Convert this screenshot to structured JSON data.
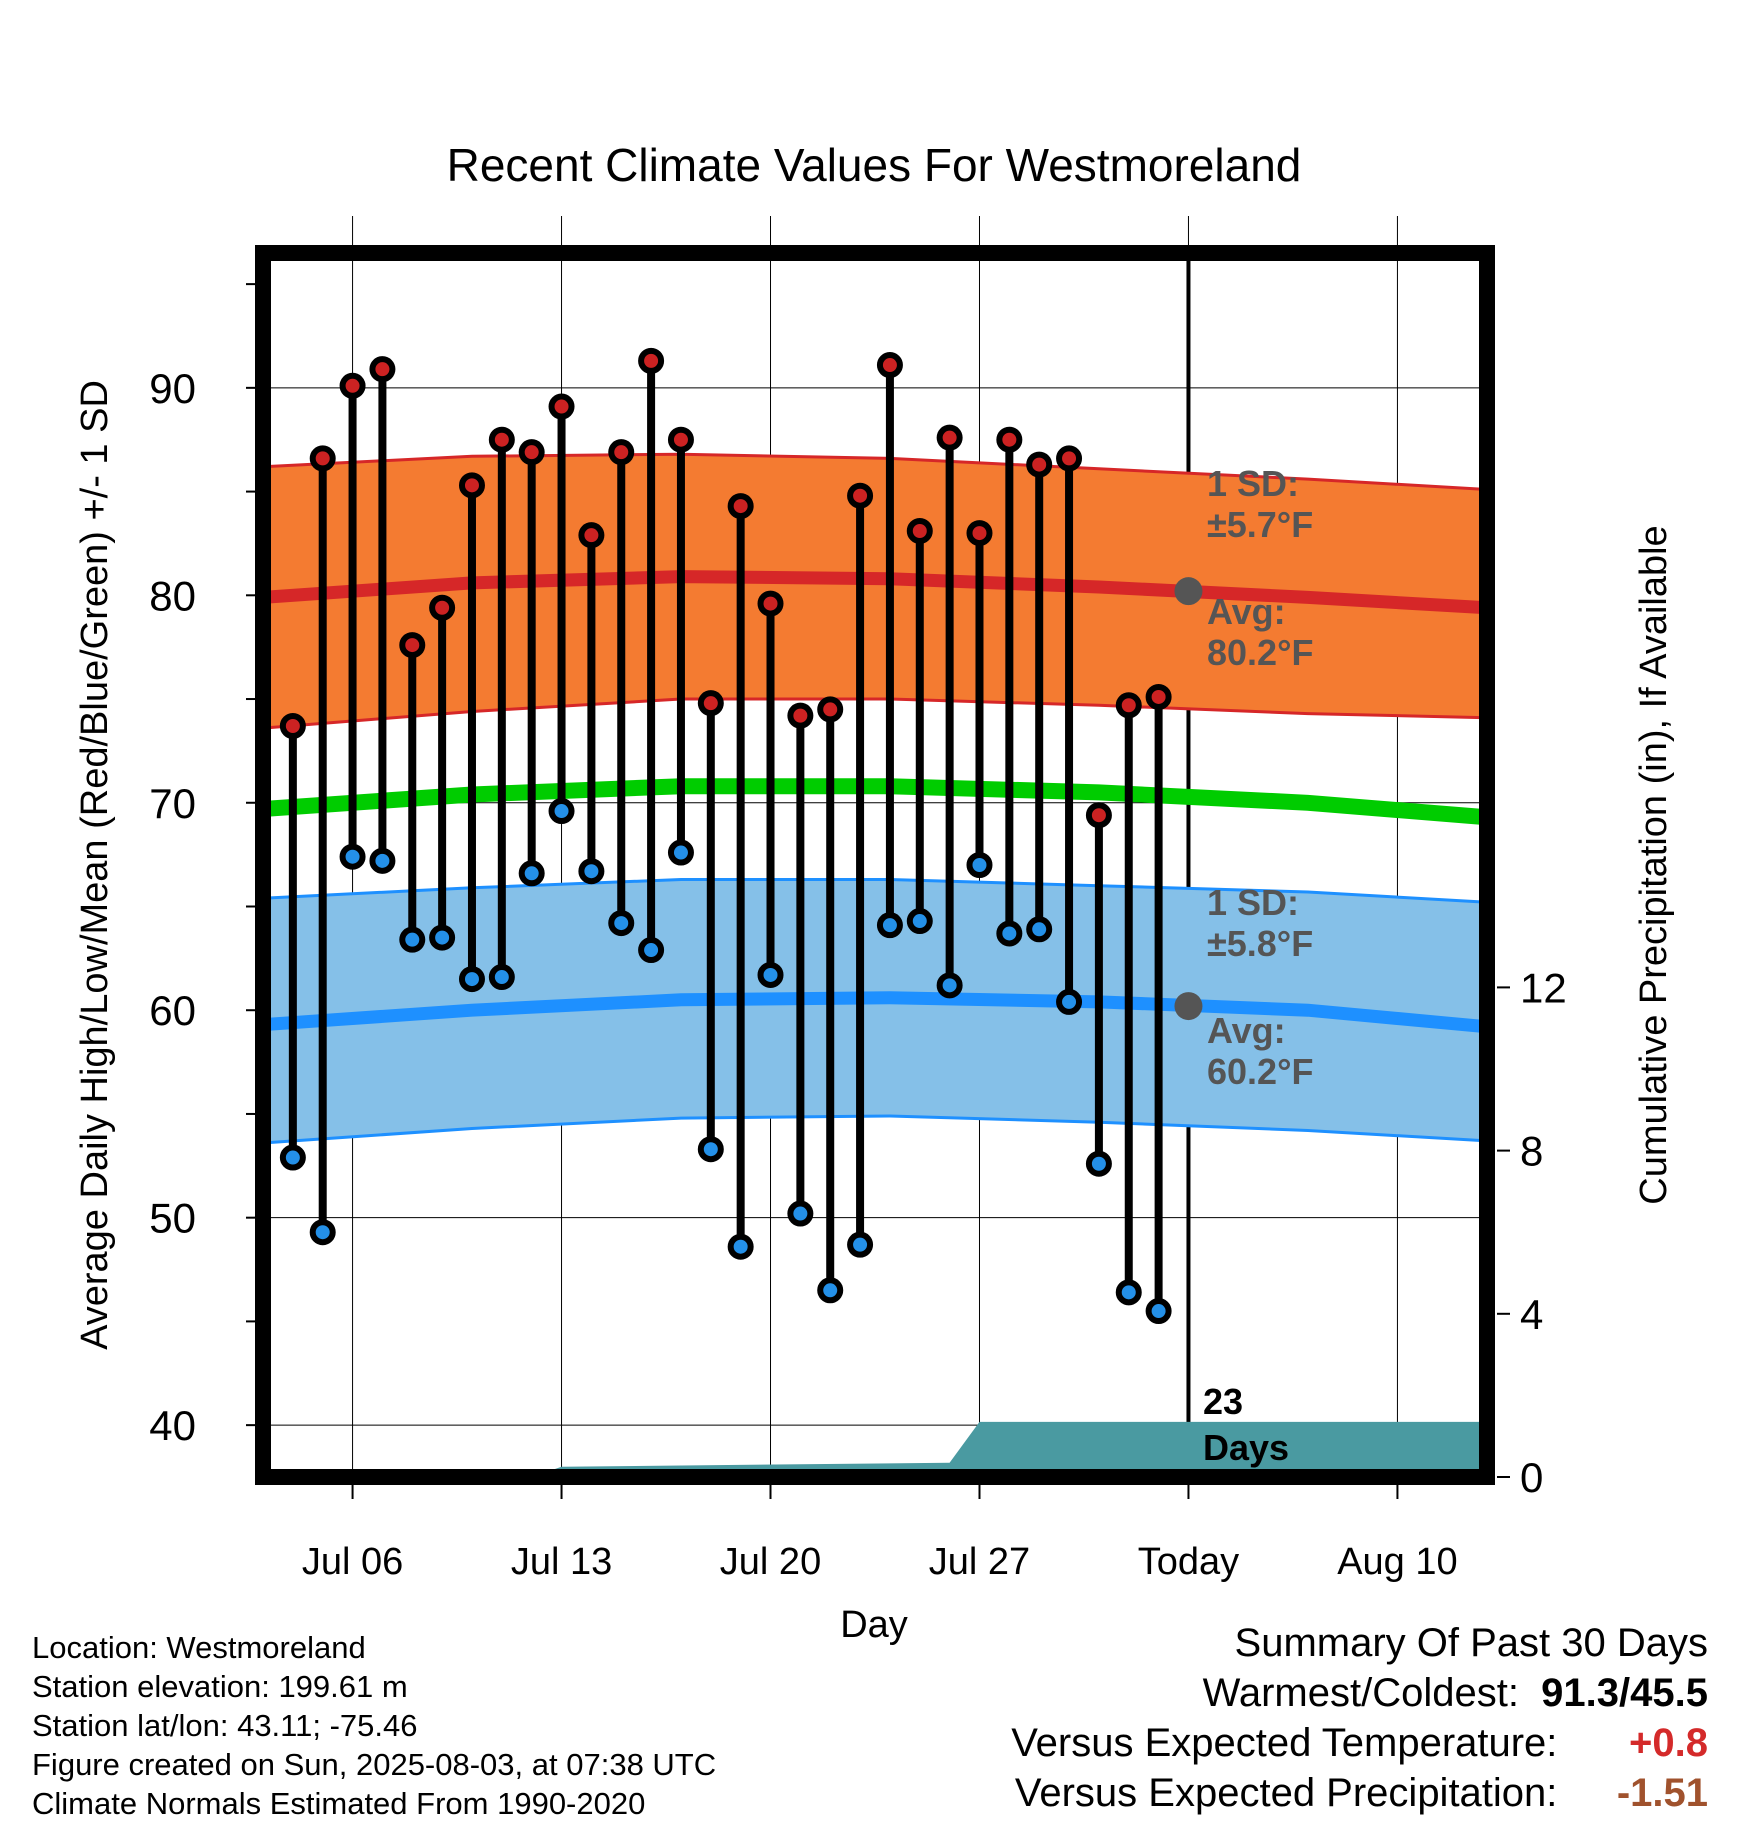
{
  "chart_data": {
    "type": "line",
    "title": "Recent Climate Values For Westmoreland",
    "xlabel": "Day",
    "ylabel": "Average Daily High/Low/Mean (Red/Blue/Green) +/- 1 SD",
    "y2label": "Cumulative Precipitation (in), If Available",
    "ylim": [
      37.5,
      96.5
    ],
    "y2lim": [
      0,
      30
    ],
    "y_ticks": [
      40,
      50,
      60,
      70,
      80,
      90
    ],
    "y2_ticks": [
      0,
      4,
      8,
      12
    ],
    "x_ticks": [
      "Jul 06",
      "Jul 13",
      "Jul 20",
      "Jul 27",
      "Today",
      "Aug 10"
    ],
    "x_range": [
      "Jul 03",
      "Aug 13"
    ],
    "grid": true,
    "observed": {
      "dates": [
        "Jul 04",
        "Jul 05",
        "Jul 06",
        "Jul 07",
        "Jul 08",
        "Jul 09",
        "Jul 10",
        "Jul 11",
        "Jul 12",
        "Jul 13",
        "Jul 14",
        "Jul 15",
        "Jul 16",
        "Jul 17",
        "Jul 18",
        "Jul 19",
        "Jul 20",
        "Jul 21",
        "Jul 22",
        "Jul 23",
        "Jul 24",
        "Jul 25",
        "Jul 26",
        "Jul 27",
        "Jul 28",
        "Jul 29",
        "Jul 30",
        "Jul 31",
        "Aug 01",
        "Aug 02"
      ],
      "highs": [
        73.7,
        86.6,
        90.1,
        90.9,
        77.6,
        79.4,
        85.3,
        87.5,
        86.9,
        89.1,
        82.9,
        86.9,
        91.3,
        87.5,
        74.8,
        84.3,
        79.6,
        74.2,
        74.5,
        84.8,
        91.1,
        83.1,
        87.6,
        83.0,
        87.5,
        86.3,
        86.6,
        69.4,
        74.7,
        75.1
      ],
      "lows": [
        52.9,
        49.3,
        67.4,
        67.2,
        63.4,
        63.5,
        61.5,
        61.6,
        66.6,
        69.6,
        66.7,
        64.2,
        62.9,
        67.6,
        53.3,
        48.6,
        61.7,
        50.2,
        46.5,
        48.7,
        64.1,
        64.3,
        61.2,
        67.0,
        63.7,
        63.9,
        60.4,
        52.6,
        46.4,
        45.5
      ]
    },
    "normals": {
      "dates": [
        "Jul 03",
        "Jul 10",
        "Jul 17",
        "Jul 24",
        "Jul 31",
        "Aug 07",
        "Aug 13"
      ],
      "high_avg": [
        79.9,
        80.6,
        80.9,
        80.8,
        80.4,
        79.9,
        79.4
      ],
      "high_sd_upper": [
        86.2,
        86.7,
        86.8,
        86.6,
        86.1,
        85.6,
        85.1
      ],
      "high_sd_lower": [
        73.6,
        74.4,
        75.0,
        75.0,
        74.7,
        74.3,
        74.1
      ],
      "mean_avg": [
        69.7,
        70.4,
        70.8,
        70.8,
        70.5,
        70.0,
        69.3
      ],
      "low_avg": [
        59.3,
        60.0,
        60.5,
        60.6,
        60.4,
        60.0,
        59.2
      ],
      "low_sd_upper": [
        65.4,
        65.9,
        66.3,
        66.3,
        66.0,
        65.7,
        65.2
      ],
      "low_sd_lower": [
        53.6,
        54.3,
        54.8,
        54.9,
        54.6,
        54.2,
        53.7
      ]
    },
    "precipitation": {
      "dates": [
        "Jul 03",
        "Jul 12",
        "Jul 13",
        "Jul 26",
        "Jul 27",
        "Aug 13"
      ],
      "cumulative": [
        0,
        0,
        0.25,
        0.35,
        1.35,
        1.35
      ]
    },
    "annotations": {
      "high_sd_label_1": "1 SD:",
      "high_sd_label_2": "±5.7°F",
      "high_avg_label_1": "Avg:",
      "high_avg_label_2": "80.2°F",
      "low_sd_label_1": "1 SD:",
      "low_sd_label_2": "±5.8°F",
      "low_avg_label_1": "Avg:",
      "low_avg_label_2": "60.2°F",
      "days_label_1": "23",
      "days_label_2": "Days",
      "today_high_avg": 80.2,
      "today_low_avg": 60.2
    },
    "colors": {
      "high_band": "#f47b31",
      "high_line": "#d62728",
      "low_band": "#85c0e8",
      "low_line": "#1e90ff",
      "mean_line": "#00cc00",
      "precip": "#4a9aa1",
      "high_dot": "#cc2222",
      "low_dot": "#2490e8",
      "annotation": "#555555"
    }
  },
  "info": {
    "location": "Location: Westmoreland",
    "elevation": "Station elevation: 199.61 m",
    "latlon": "Station lat/lon: 43.11; -75.46",
    "created": "Figure created on Sun, 2025-08-03, at 07:38 UTC",
    "normals": "Climate Normals Estimated From 1990-2020"
  },
  "summary": {
    "title": "Summary Of Past 30 Days",
    "warm_cold_label": "Warmest/Coldest:",
    "warm_cold_value": "91.3/45.5",
    "temp_label": "Versus Expected Temperature:",
    "temp_value": "+0.8",
    "precip_label": "Versus Expected Precipitation:",
    "precip_value": "-1.51"
  }
}
